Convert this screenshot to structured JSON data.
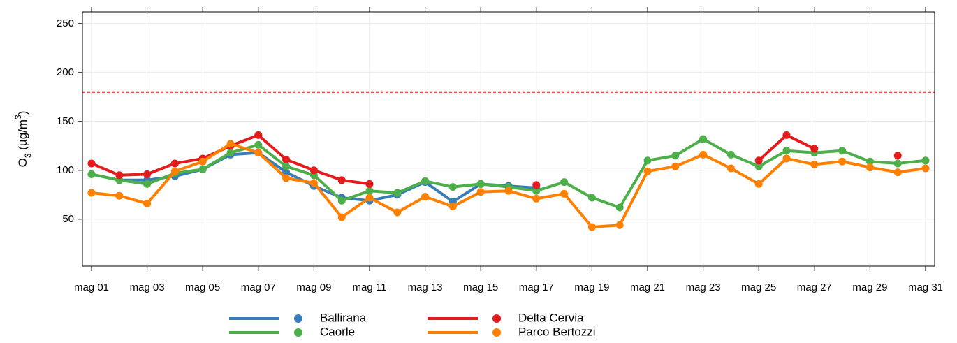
{
  "chart_data": {
    "type": "line",
    "y_label_parts": [
      "O",
      "3",
      " (µg/m",
      "3",
      ")"
    ],
    "categories": [
      "mag 01",
      null,
      "mag 03",
      null,
      "mag 05",
      null,
      "mag 07",
      null,
      "mag 09",
      null,
      "mag 11",
      null,
      "mag 13",
      null,
      "mag 15",
      null,
      "mag 17",
      null,
      "mag 19",
      null,
      "mag 21",
      null,
      "mag 23",
      null,
      "mag 25",
      null,
      "mag 27",
      null,
      "mag 29",
      null,
      "mag 31"
    ],
    "ylim": [
      2,
      262
    ],
    "yticks": [
      50,
      100,
      150,
      200,
      250
    ],
    "grid": true,
    "threshold": 180,
    "threshold_color": "#e41a1c",
    "series": [
      {
        "name": "Ballirana",
        "color": "#377eb8",
        "values": [
          96,
          90,
          90,
          94,
          101,
          116,
          118,
          98,
          84,
          72,
          69,
          75,
          88,
          68,
          86,
          84,
          82,
          null,
          null,
          null,
          null,
          null,
          null,
          null,
          null,
          null,
          null,
          null,
          null,
          null,
          null
        ]
      },
      {
        "name": "Caorle",
        "color": "#4daf4a",
        "values": [
          96,
          90,
          86,
          97,
          101,
          118,
          126,
          104,
          95,
          69,
          79,
          77,
          89,
          83,
          86,
          83,
          79,
          88,
          72,
          62,
          110,
          115,
          132,
          116,
          104,
          120,
          118,
          120,
          109,
          107,
          110
        ]
      },
      {
        "name": "Delta Cervia",
        "color": "#e41a1c",
        "values": [
          107,
          95,
          96,
          107,
          112,
          125,
          136,
          111,
          100,
          90,
          86,
          null,
          null,
          null,
          null,
          null,
          85,
          null,
          null,
          null,
          null,
          null,
          null,
          null,
          110,
          136,
          122,
          null,
          null,
          115,
          null
        ]
      },
      {
        "name": "Parco Bertozzi",
        "color": "#ff7f00",
        "values": [
          77,
          74,
          66,
          99,
          109,
          127,
          118,
          92,
          87,
          52,
          72,
          57,
          73,
          63,
          78,
          79,
          71,
          76,
          42,
          44,
          99,
          104,
          116,
          102,
          86,
          112,
          106,
          109,
          103,
          98,
          102
        ]
      }
    ]
  }
}
